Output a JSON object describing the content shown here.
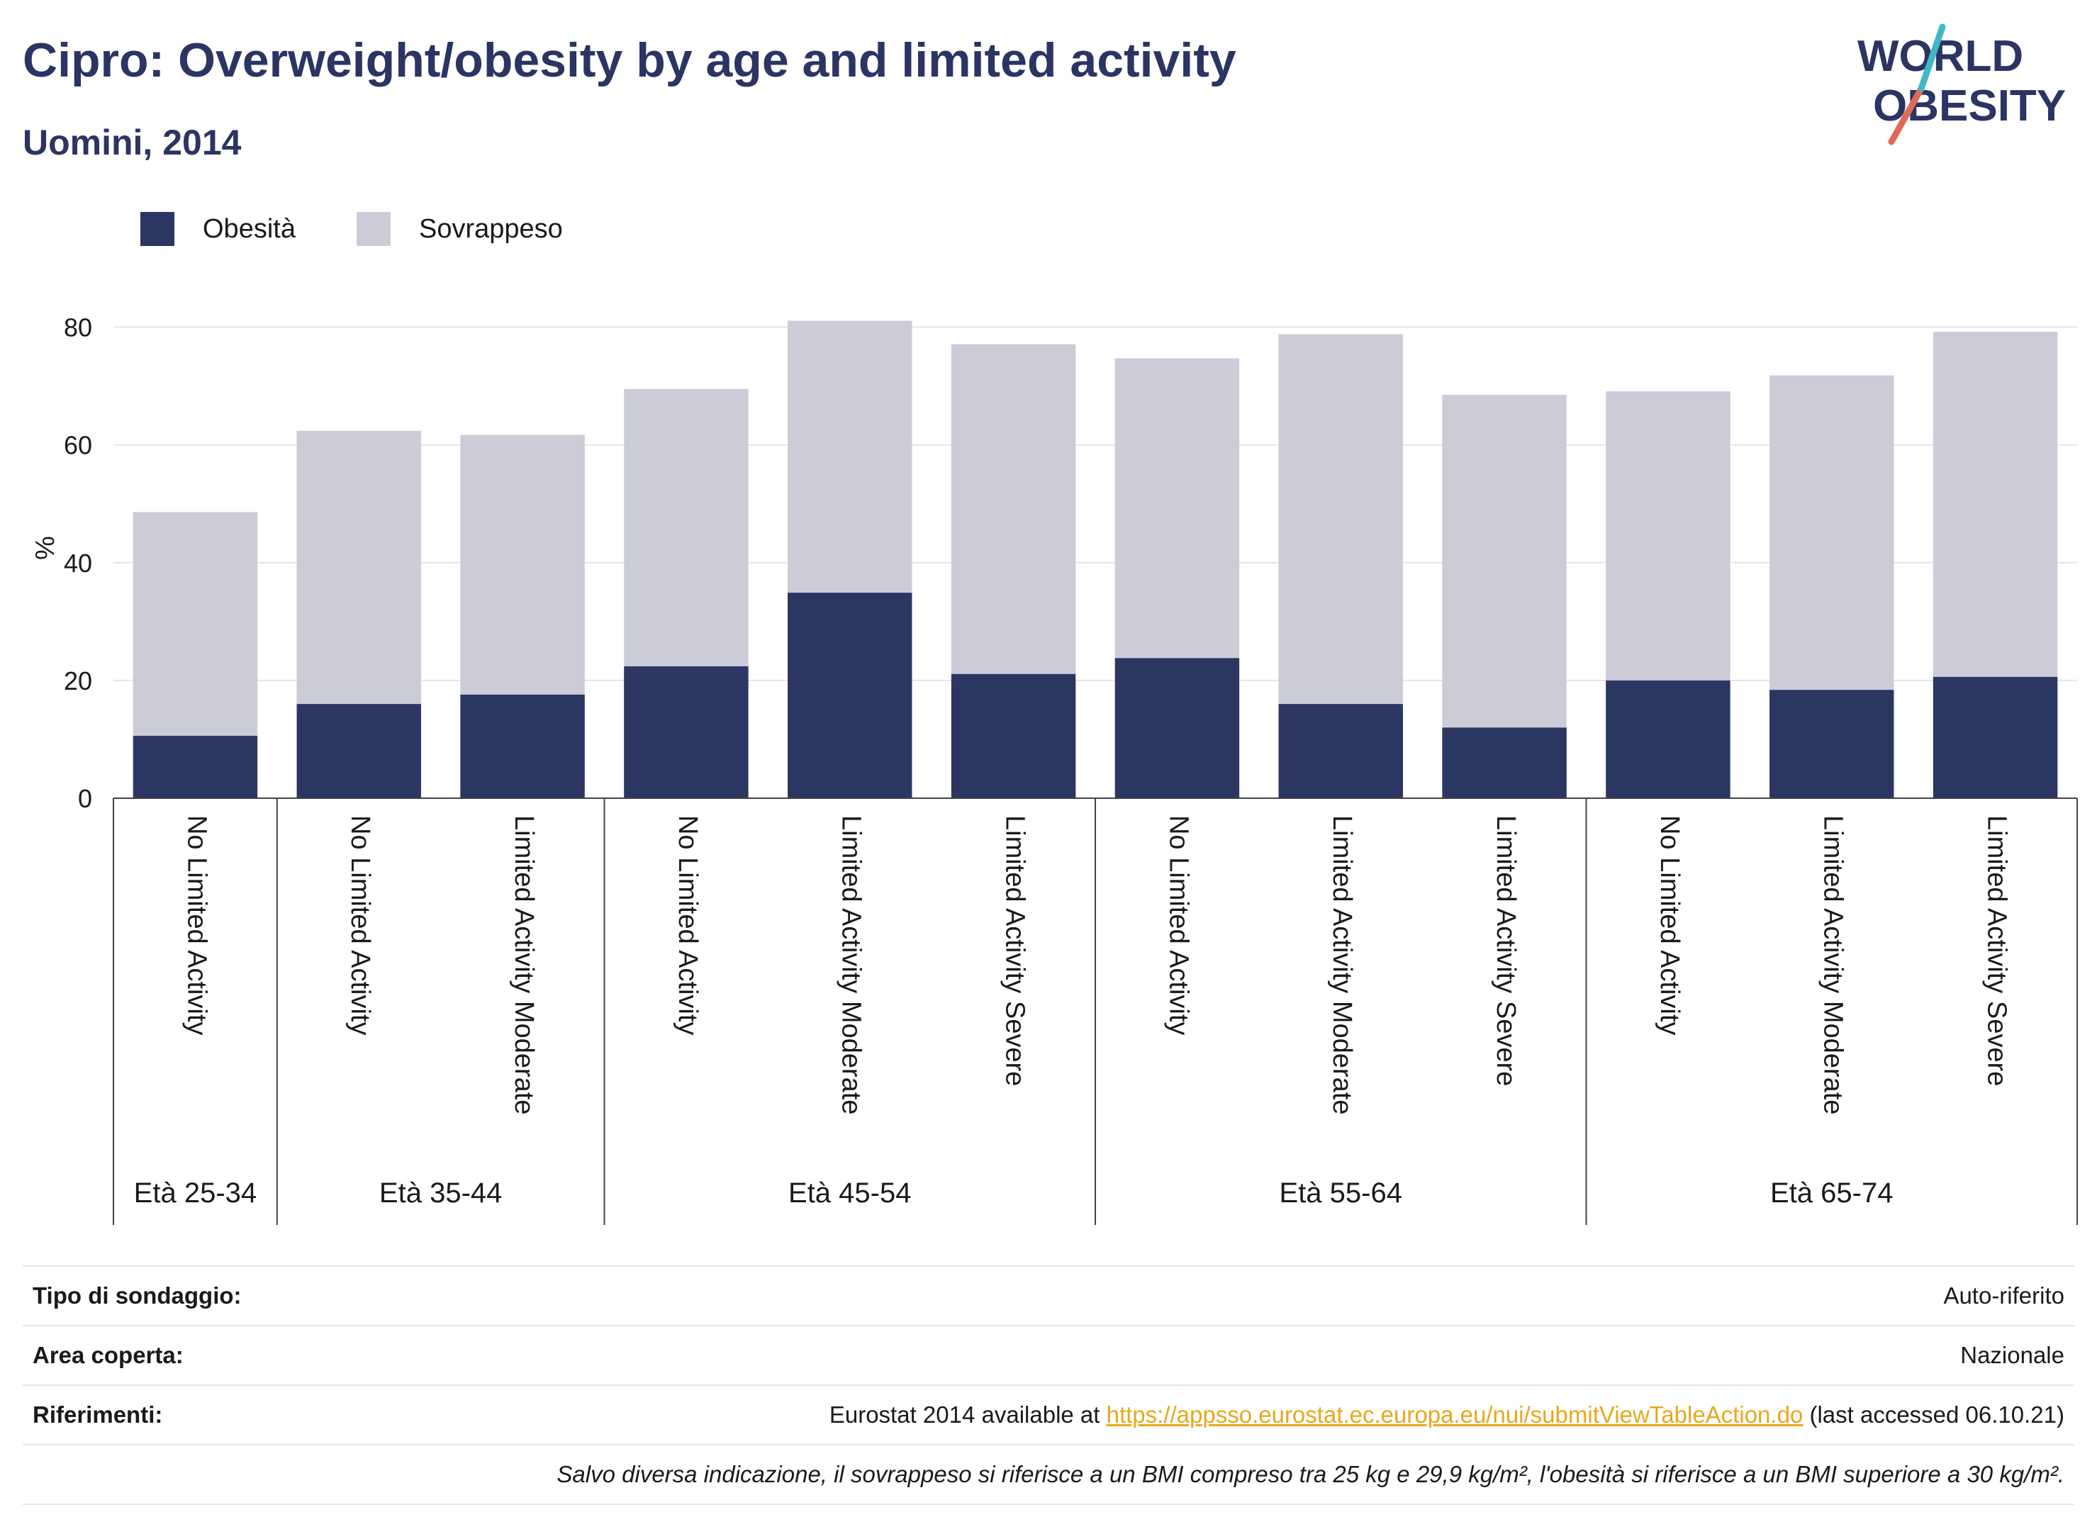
{
  "title": "Cipro: Overweight/obesity by age and limited activity",
  "subtitle": "Uomini, 2014",
  "logo": {
    "line1": "WORLD",
    "line2": "OBESITY"
  },
  "colors": {
    "obesity": "#2b3663",
    "overweight": "#cbccd8",
    "title": "#2a3563",
    "link": "#e8a81c"
  },
  "legend": [
    {
      "label": "Obesità",
      "color": "#2b3663"
    },
    {
      "label": "Sovrappeso",
      "color": "#cbccd8"
    }
  ],
  "chart_data": {
    "type": "bar",
    "stacked": true,
    "ylabel": "%",
    "ylim": [
      0,
      85
    ],
    "yticks": [
      0,
      20,
      40,
      60,
      80
    ],
    "grid": true,
    "legend_position": "top-left",
    "categories": [
      "No Limited Activity",
      "No Limited Activity",
      "Limited Activity Moderate",
      "No Limited Activity",
      "Limited Activity Moderate",
      "Limited Activity Severe",
      "No Limited Activity",
      "Limited Activity Moderate",
      "Limited Activity Severe",
      "No Limited Activity",
      "Limited Activity Moderate",
      "Limited Activity Severe"
    ],
    "groups": [
      {
        "label": "Età 25-34",
        "count": 1
      },
      {
        "label": "Età 35-44",
        "count": 2
      },
      {
        "label": "Età 45-54",
        "count": 3
      },
      {
        "label": "Età 55-64",
        "count": 3
      },
      {
        "label": "Età 65-74",
        "count": 3
      }
    ],
    "series": [
      {
        "name": "Obesità",
        "values": [
          10.6,
          16.0,
          17.6,
          22.4,
          34.9,
          21.1,
          23.8,
          16.0,
          12.0,
          20.0,
          18.4,
          20.6
        ]
      },
      {
        "name": "Sovrappeso",
        "values": [
          38.0,
          46.4,
          44.1,
          47.1,
          46.2,
          56.0,
          50.9,
          62.8,
          56.5,
          49.1,
          53.4,
          58.6
        ]
      }
    ]
  },
  "footer": {
    "survey_label": "Tipo di sondaggio:",
    "survey_value": "Auto-riferito",
    "area_label": "Area coperta:",
    "area_value": "Nazionale",
    "refs_label": "Riferimenti:",
    "refs_prefix": "Eurostat 2014 available at ",
    "refs_link": "https://appsso.eurostat.ec.europa.eu/nui/submitViewTableAction.do",
    "refs_suffix": " (last accessed 06.10.21)",
    "note": "Salvo diversa indicazione, il sovrappeso si riferisce a un BMI compreso tra 25 kg e 29,9 kg/m², l'obesità si riferisce a un BMI superiore a 30 kg/m²."
  }
}
